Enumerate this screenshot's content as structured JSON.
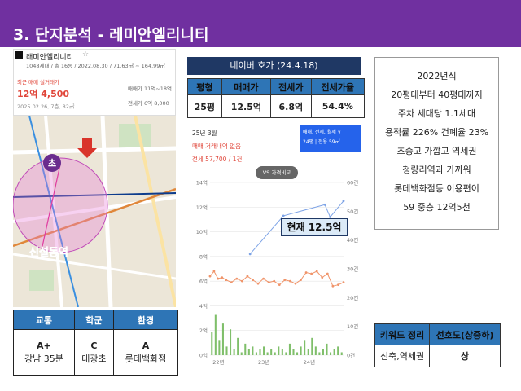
{
  "header": {
    "title": "3. 단지분석 - 레미안엘리니티",
    "color": "#7030a0"
  },
  "property_card": {
    "name": "래미안엘리니티",
    "info": "1048세대 / 총 16동 / 2022.08.30 / 71.63㎡ ~ 164.99㎡",
    "recent_label": "최근 매매 실거래가",
    "recent_price": "12억 4,500",
    "date_line": "2025.02.26, 7층, 82㎡",
    "sale_range": "매매가 11억~18억",
    "jeonse_range": "전세가 6억 8,000"
  },
  "map": {
    "school_label": "초",
    "station_label": "신설동역"
  },
  "bottom_table": {
    "headers": [
      "교통",
      "학군",
      "환경"
    ],
    "cells": [
      {
        "main": "A+",
        "sub": "강남 35분"
      },
      {
        "main": "C",
        "sub": "대광초"
      },
      {
        "main": "A",
        "sub": "롯데백화점"
      }
    ]
  },
  "naver": {
    "title": "네이버 호가 (24.4.18)",
    "headers": [
      "평형",
      "매매가",
      "전세가",
      "전세가율"
    ],
    "row": [
      "25평",
      "12.5억",
      "6.8억",
      "54.4%"
    ]
  },
  "chart_panel": {
    "period": "25년 3월",
    "no_trade": "매매 거래내역 없음",
    "jeonse_info": "전세 57,700 / 1건",
    "filter_label": "매매, 전세, 월세 ∨",
    "size_label": "24평 | 전용 59㎡",
    "vs_label": "VS 가격비교",
    "current_label": "현재 12.5억"
  },
  "chart_data": {
    "type": "line",
    "x_ticks": [
      "22년",
      "23년",
      "24년"
    ],
    "y_left_ticks": [
      "0억",
      "2억",
      "4억",
      "6억",
      "8억",
      "10억",
      "12억",
      "14억"
    ],
    "y_right_ticks": [
      "0건",
      "10건",
      "20건",
      "30건",
      "40건",
      "50건",
      "60건"
    ],
    "ylim_left": [
      0,
      14
    ],
    "ylim_right": [
      0,
      60
    ],
    "series": [
      {
        "color": "#7da3e6",
        "x": [
          0.3,
          0.55,
          0.86,
          0.9,
          1.0
        ],
        "y": [
          8.2,
          11.3,
          12.2,
          11.2,
          12.5
        ]
      },
      {
        "color": "#f0946a",
        "x": [
          0.0,
          0.03,
          0.06,
          0.09,
          0.12,
          0.16,
          0.2,
          0.24,
          0.28,
          0.32,
          0.36,
          0.4,
          0.44,
          0.48,
          0.52,
          0.56,
          0.6,
          0.64,
          0.68,
          0.72,
          0.76,
          0.8,
          0.84,
          0.88,
          0.92,
          0.96,
          1.0
        ],
        "y": [
          6.4,
          6.8,
          6.2,
          6.3,
          6.1,
          5.9,
          6.2,
          6.0,
          6.4,
          6.1,
          5.8,
          6.2,
          5.9,
          6.0,
          5.7,
          6.1,
          6.0,
          5.8,
          6.1,
          6.7,
          6.6,
          6.8,
          6.3,
          6.6,
          5.6,
          5.7,
          5.9
        ]
      }
    ],
    "bar_series": {
      "color": "#7fbf6a",
      "values": [
        8,
        14,
        5,
        11,
        3,
        9,
        2,
        6,
        1,
        4,
        2,
        3,
        1,
        2,
        3,
        1,
        2,
        1,
        3,
        2,
        1,
        4,
        2,
        1,
        3,
        5,
        2,
        6,
        3,
        1,
        2,
        4,
        1,
        2,
        3,
        1
      ]
    },
    "grid": true
  },
  "info_box": {
    "lines": [
      "2022년식",
      "20평대부터 40평대까지",
      "주차 세대당 1.1세대",
      "용적률 226% 건폐율 23%",
      "초중고 가깝고 역세권",
      "청량리역과 가까워",
      "롯데백화점등 이용편이",
      "59 중층 12억5천"
    ]
  },
  "keywords": {
    "headers": [
      "키워드 정리",
      "선호도(상중하)"
    ],
    "row": [
      "신축,역세권",
      "상"
    ]
  }
}
